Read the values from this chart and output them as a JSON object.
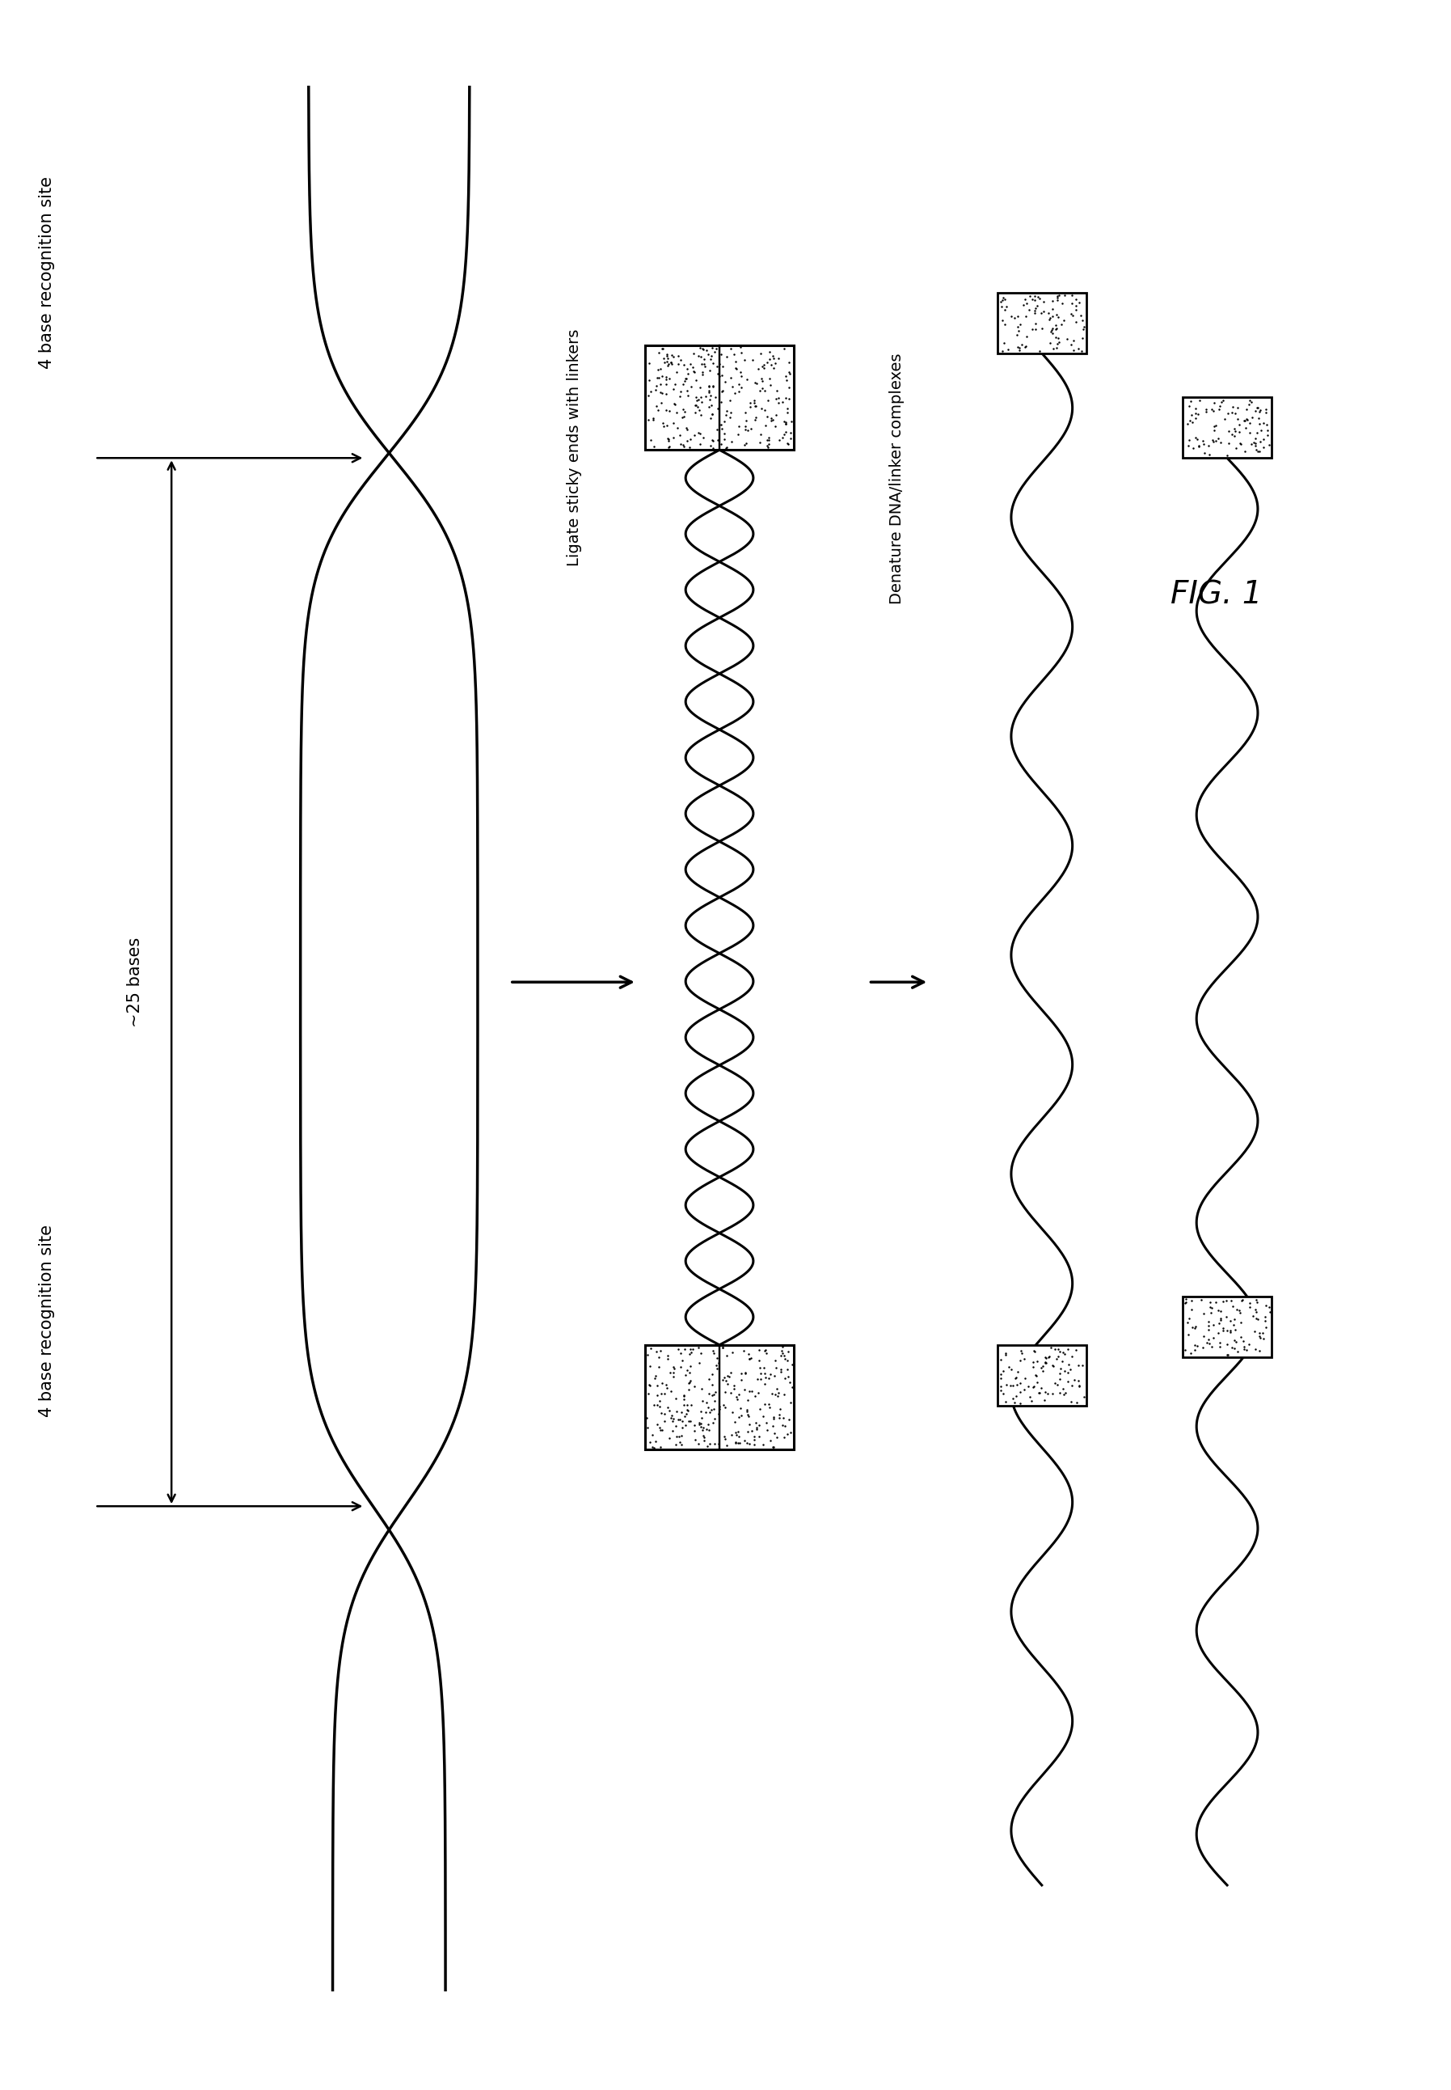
{
  "fig_width": 17.95,
  "fig_height": 25.84,
  "bg_color": "#ffffff",
  "line_color": "#000000",
  "line_width": 2.2,
  "fig_label": "FIG. 1",
  "label1": "4 base recognition site",
  "label2": "~25 bases",
  "label3": "4 base recognition site",
  "label4": "Ligate sticky ends with linkers",
  "label5": "Denature DNA/linker complexes",
  "font_size_labels": 15,
  "font_size_fig": 28
}
